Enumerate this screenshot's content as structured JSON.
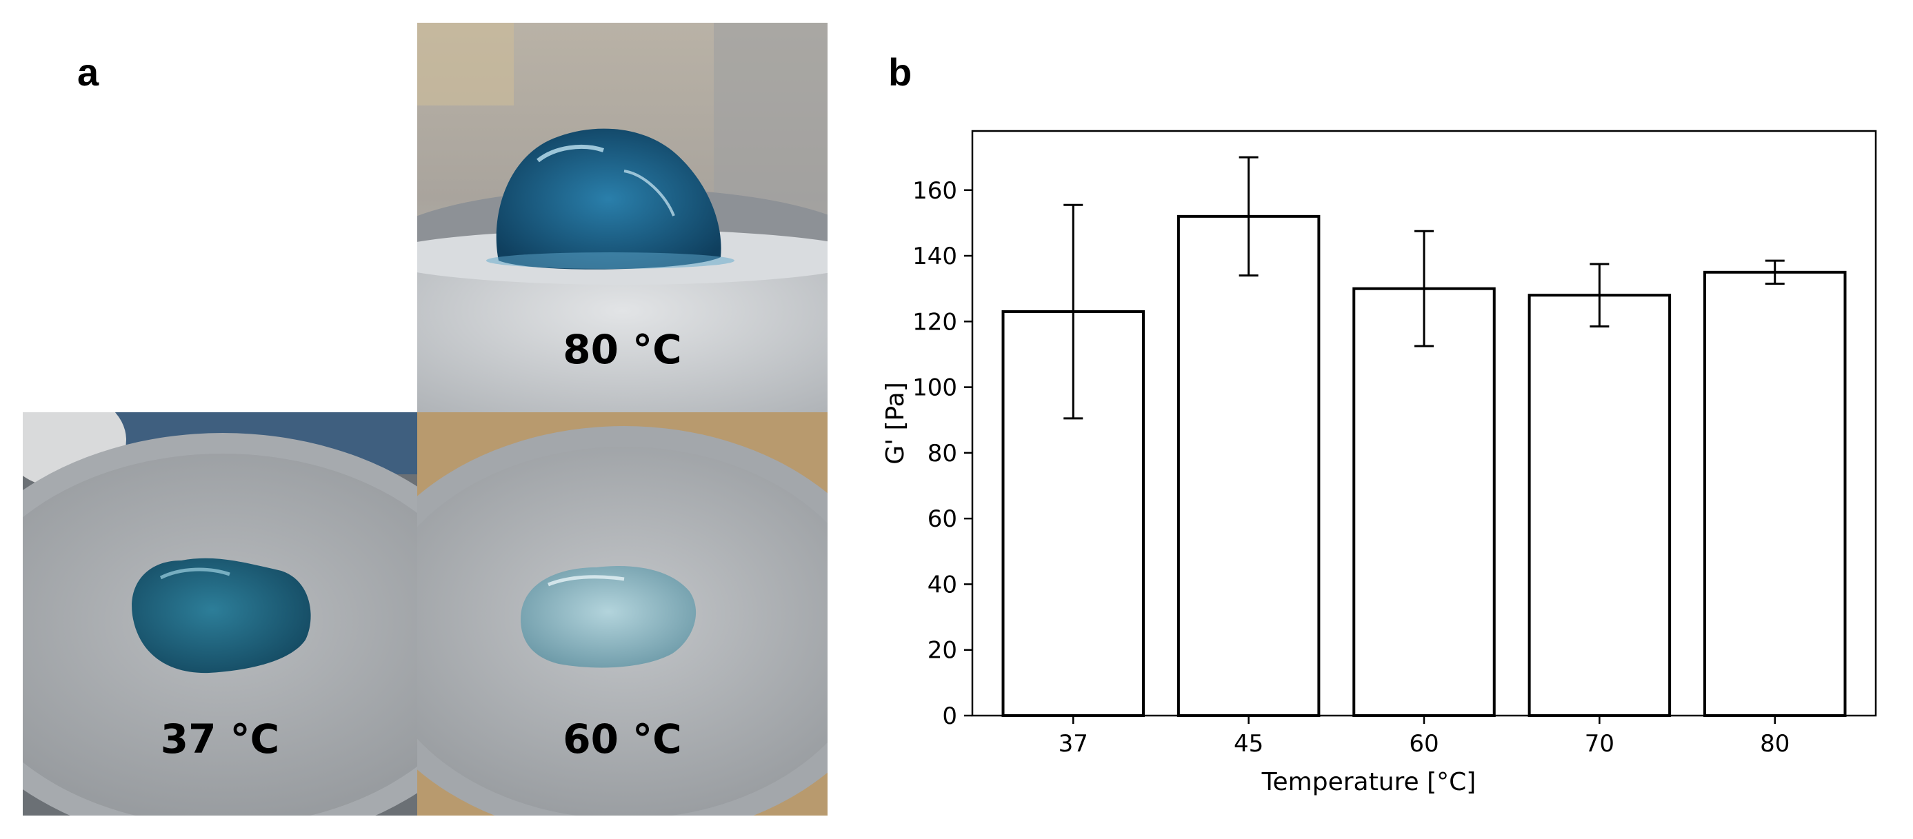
{
  "panels": {
    "a": {
      "letter": "a",
      "photos": [
        {
          "label": "80 °C",
          "gel_color": "#1e6f99"
        },
        {
          "label": "37 °C",
          "gel_color": "#256f8c"
        },
        {
          "label": "60 °C",
          "gel_color": "#8fb9c4"
        }
      ]
    },
    "b": {
      "letter": "b"
    }
  },
  "chart_data": {
    "type": "bar",
    "categories": [
      "37",
      "45",
      "60",
      "70",
      "80"
    ],
    "values": [
      123,
      152,
      130,
      128,
      135
    ],
    "error": [
      32.5,
      18,
      17.5,
      9.5,
      3.5
    ],
    "xlabel": "Temperature [°C]",
    "ylabel": "G' [Pa]",
    "ylim": [
      0,
      178
    ],
    "yticks": [
      0,
      20,
      40,
      60,
      80,
      100,
      120,
      140,
      160
    ],
    "grid": false,
    "bar_fill": "#ffffff",
    "bar_stroke": "#000000"
  }
}
